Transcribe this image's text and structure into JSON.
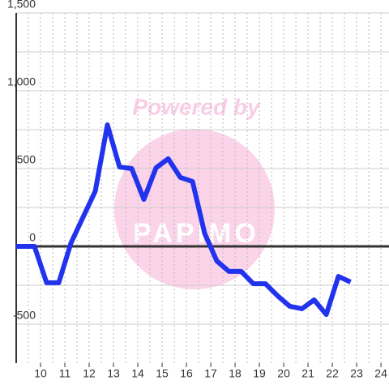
{
  "chart_data": {
    "type": "line",
    "watermark": "Powered by",
    "watermark_logo": "PAPIMO",
    "x": [
      9,
      9.75,
      10.25,
      10.75,
      11.25,
      11.75,
      12.25,
      12.75,
      13.25,
      13.75,
      14.25,
      14.75,
      15.25,
      15.75,
      16.25,
      16.75,
      17.25,
      17.75,
      18.25,
      18.75,
      19.25,
      19.75,
      20.25,
      20.75,
      21.25,
      21.75,
      22.25,
      22.75
    ],
    "series": [
      {
        "color": "#2233ee",
        "values": [
          0,
          0,
          -234,
          -234,
          21,
          188,
          354,
          781,
          510,
          500,
          302,
          505,
          563,
          443,
          417,
          83,
          -94,
          -161,
          -161,
          -240,
          -240,
          -318,
          -385,
          -401,
          -344,
          -438,
          -193,
          -229
        ]
      }
    ],
    "xlim": [
      9,
      24.33
    ],
    "ylim": [
      -750,
      1500
    ],
    "xticks": [
      10,
      11,
      12,
      13,
      14,
      15,
      16,
      17,
      18,
      19,
      20,
      21,
      22,
      23,
      24
    ],
    "xminorticks": [
      9.5,
      10.5,
      11.5,
      12.5,
      13.5,
      14.5,
      15.5,
      16.5,
      17.5,
      18.5,
      19.5,
      20.5,
      21.5,
      22.5,
      23.5
    ],
    "yticks": [
      {
        "value": 1500,
        "label": "1,500"
      },
      {
        "value": 1000,
        "label": "1,000"
      },
      500,
      0,
      -500
    ],
    "yminorticks": [
      1250,
      750,
      250,
      -250
    ],
    "grid": true
  }
}
